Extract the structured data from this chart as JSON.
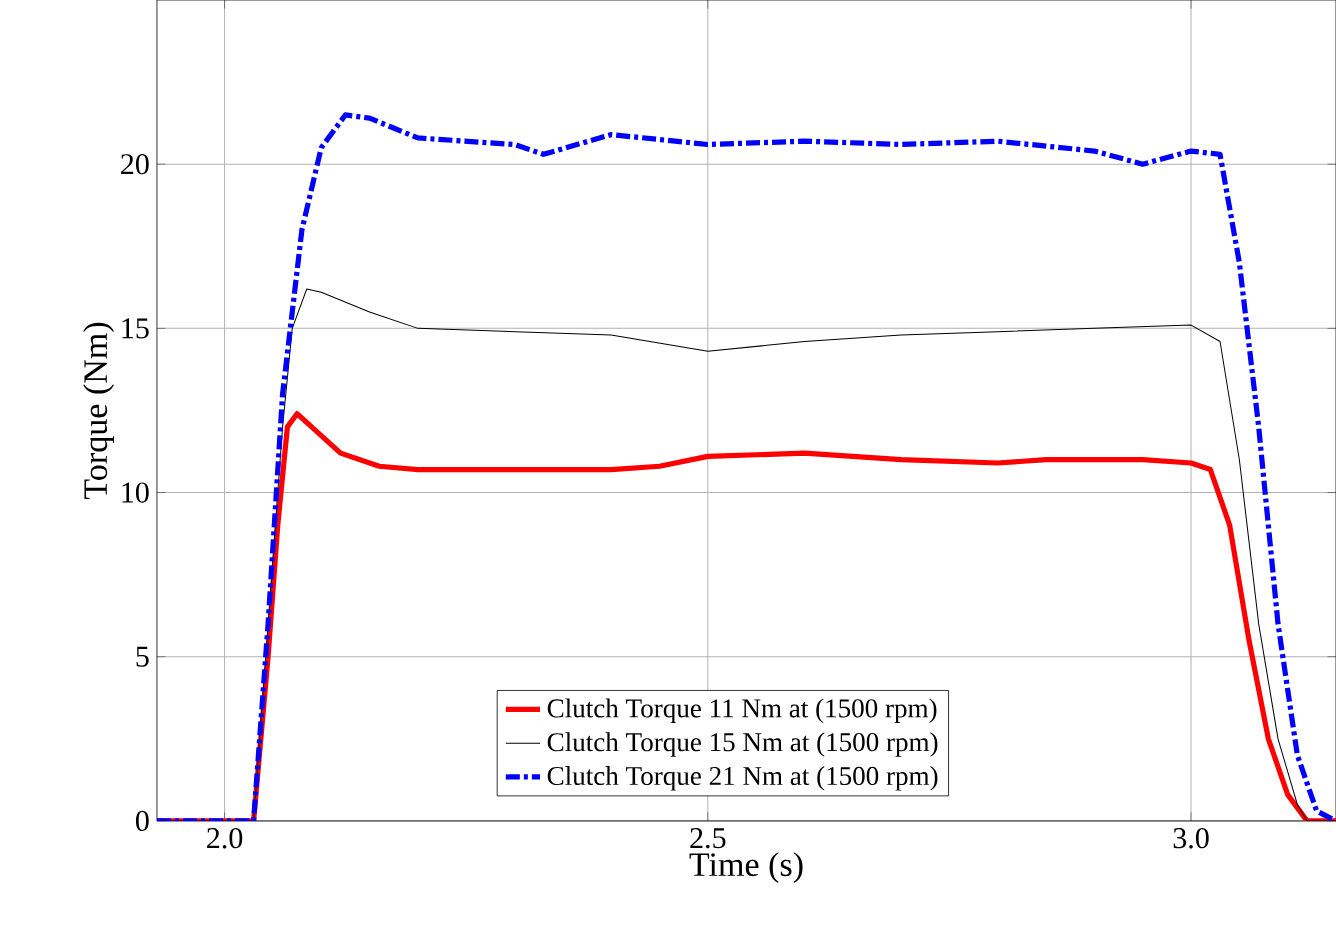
{
  "chart_data": {
    "type": "line",
    "xlabel": "Time (s)",
    "ylabel": "Torque (Nm)",
    "xlim": [
      1.93,
      3.15
    ],
    "ylim": [
      0,
      25
    ],
    "xticks": [
      {
        "value": 2.0,
        "label": "2.0"
      },
      2.5,
      {
        "value": 3.0,
        "label": "3.0"
      }
    ],
    "yticks": [
      0,
      5,
      10,
      15,
      20
    ],
    "grid": true,
    "legend": "bottom",
    "series": [
      {
        "name": "Clutch Torque 11 Nm at (1500 rpm)",
        "color": "#ff0000",
        "line_style": "solid",
        "x": [
          1.93,
          2.03,
          2.045,
          2.055,
          2.065,
          2.075,
          2.09,
          2.12,
          2.16,
          2.2,
          2.3,
          2.4,
          2.45,
          2.5,
          2.6,
          2.7,
          2.8,
          2.85,
          2.95,
          3.0,
          3.02,
          3.04,
          3.06,
          3.08,
          3.1,
          3.12,
          3.15
        ],
        "values": [
          0,
          0,
          5,
          9,
          12,
          12.4,
          12,
          11.2,
          10.8,
          10.7,
          10.7,
          10.7,
          10.8,
          11.1,
          11.2,
          11.0,
          10.9,
          11.0,
          11.0,
          10.9,
          10.7,
          9,
          5.5,
          2.5,
          0.8,
          0,
          0
        ]
      },
      {
        "name": "Clutch Torque 15 Nm at (1500 rpm)",
        "color": "#000000",
        "line_style": "solid",
        "x": [
          1.93,
          2.03,
          2.045,
          2.06,
          2.07,
          2.085,
          2.1,
          2.15,
          2.2,
          2.3,
          2.4,
          2.5,
          2.6,
          2.7,
          2.8,
          2.9,
          3.0,
          3.03,
          3.05,
          3.07,
          3.09,
          3.11,
          3.12,
          3.15
        ],
        "values": [
          0,
          0,
          null,
          12,
          15,
          16.2,
          16.1,
          15.5,
          15.0,
          14.9,
          14.8,
          14.3,
          14.6,
          14.8,
          14.9,
          15.0,
          15.1,
          14.6,
          11,
          6,
          2.5,
          0.5,
          0,
          0
        ]
      },
      {
        "name": "Clutch Torque 21 Nm at (1500 rpm)",
        "color": "#0000ff",
        "line_style": "dashdot",
        "x": [
          1.93,
          2.03,
          2.045,
          2.06,
          2.08,
          2.1,
          2.125,
          2.15,
          2.2,
          2.3,
          2.33,
          2.4,
          2.5,
          2.6,
          2.7,
          2.8,
          2.9,
          2.95,
          3.0,
          3.03,
          3.05,
          3.07,
          3.09,
          3.11,
          3.13,
          3.15
        ],
        "values": [
          0,
          0,
          6,
          13,
          18,
          20.5,
          21.5,
          21.4,
          20.8,
          20.6,
          20.3,
          20.9,
          20.6,
          20.7,
          20.6,
          20.7,
          20.4,
          20.0,
          20.4,
          20.3,
          17,
          12,
          6,
          2,
          0.3,
          0
        ]
      }
    ]
  }
}
